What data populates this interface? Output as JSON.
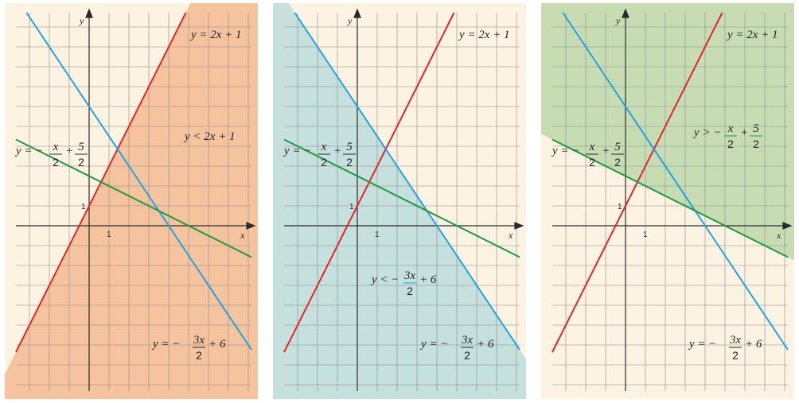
{
  "colors": {
    "paper": "#fdf3e2",
    "grid": "#8a8a8a",
    "axis": "#2a2a2a",
    "red": "#e0262c",
    "blue": "#1fa3df",
    "green": "#1f9a3e",
    "shade_panel1": "#f6c39f",
    "shade_panel2": "#c6e0dd",
    "shade_panel3": "#c8dcb4"
  },
  "axes": {
    "x_label": "x",
    "y_label": "y",
    "x_tick": "1",
    "y_tick": "1"
  },
  "lines": {
    "red": {
      "slope": 2,
      "intercept": 1
    },
    "blue": {
      "slope": -1.5,
      "intercept": 6
    },
    "green": {
      "slope": -0.5,
      "intercept": 2.5
    }
  },
  "labels": {
    "red_eq": {
      "lhs": "y = 2x + 1"
    },
    "green_eq": {
      "lhs": "y = −",
      "num1": "x",
      "den1": "2",
      "mid": "+",
      "num2": "5",
      "den2": "2"
    },
    "blue_eq": {
      "lhs": "y = −",
      "num1": "3x",
      "den1": "2",
      "rhs": "+ 6"
    }
  },
  "panels": [
    {
      "id": "panel1",
      "shade": "below-red",
      "inequality": {
        "text": "y < 2x + 1"
      }
    },
    {
      "id": "panel2",
      "shade": "below-blue",
      "inequality": {
        "lhs": "y < −",
        "num": "3x",
        "den": "2",
        "rhs": "+ 6"
      }
    },
    {
      "id": "panel3",
      "shade": "above-green",
      "inequality": {
        "lhs": "y > −",
        "num1": "x",
        "den1": "2",
        "mid": "+",
        "num2": "5",
        "den2": "2"
      }
    }
  ]
}
